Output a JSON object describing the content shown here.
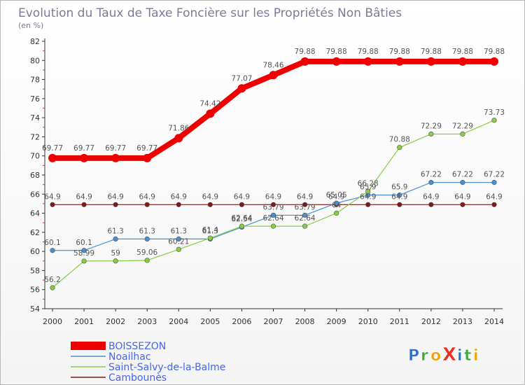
{
  "chart_data": {
    "type": "line",
    "title": "Evolution du Taux de Taxe Foncière sur les Propriétés Non Bâties",
    "subtitle": "(en %)",
    "xlabel": "",
    "ylabel": "",
    "categories": [
      "2000",
      "2001",
      "2002",
      "2003",
      "2004",
      "2005",
      "2006",
      "2007",
      "2008",
      "2009",
      "2010",
      "2011",
      "2012",
      "2013",
      "2014"
    ],
    "ylim": [
      54,
      82
    ],
    "yticks": [
      54,
      56,
      58,
      60,
      62,
      64,
      66,
      68,
      70,
      72,
      74,
      76,
      78,
      80,
      82
    ],
    "grid": false,
    "legend_position": "bottom-left",
    "series": [
      {
        "name": "BOISSEZON",
        "color": "#ee0000",
        "values": [
          69.77,
          69.77,
          69.77,
          69.77,
          71.86,
          74.42,
          77.07,
          78.46,
          79.88,
          79.88,
          79.88,
          79.88,
          79.88,
          79.88,
          79.88
        ],
        "labels": [
          "69.77",
          "69.77",
          "69.77",
          "69.77",
          "71.86",
          "74.42",
          "77.07",
          "78.46",
          "79.88",
          "79.88",
          "79.88",
          "79.88",
          "79.88",
          "79.88",
          "79.88"
        ]
      },
      {
        "name": "Noailhac",
        "color": "#4a90d0",
        "values": [
          60.1,
          60.1,
          61.3,
          61.3,
          61.3,
          61.3,
          62.54,
          63.79,
          63.79,
          65.05,
          65.9,
          65.9,
          67.22,
          67.22,
          67.22
        ],
        "labels": [
          "60.1",
          "60.1",
          "61.3",
          "61.3",
          "61.3",
          "61.3",
          "62.54",
          "63.79",
          "63.79",
          "65.05",
          "65.9",
          "65.9",
          "67.22",
          "67.22",
          "67.22"
        ]
      },
      {
        "name": "Saint-Salvy-de-la-Balme",
        "color": "#88cc44",
        "values": [
          56.2,
          58.99,
          59,
          59.06,
          60.21,
          61.4,
          62.64,
          62.64,
          62.64,
          64,
          66.28,
          70.88,
          72.29,
          72.29,
          73.73
        ],
        "labels": [
          "56.2",
          "58.99",
          "59",
          "59.06",
          "60.21",
          "61.4",
          "62.64",
          "62.64",
          "62.64",
          "64",
          "66.28",
          "70.88",
          "72.29",
          "72.29",
          "73.73"
        ]
      },
      {
        "name": "Cambounès",
        "color": "#7a1a1a",
        "values": [
          64.9,
          64.9,
          64.9,
          64.9,
          64.9,
          64.9,
          64.9,
          64.9,
          64.9,
          64.9,
          64.9,
          64.9,
          64.9,
          64.9,
          64.9
        ],
        "labels": [
          "64.9",
          "64.9",
          "64.9",
          "64.9",
          "64.9",
          "64.9",
          "64.9",
          "64.9",
          "64.9",
          "64.9",
          "64.9",
          "64.9",
          "64.9",
          "64.9",
          "64.9"
        ]
      }
    ]
  },
  "brand": {
    "logo_text": "ProXiti",
    "letters": [
      "P",
      "r",
      "o",
      "X",
      "i",
      "t",
      "i"
    ],
    "letter_colors": [
      "#2a6fd6",
      "#3aaa3a",
      "#f0a000",
      "#e83020",
      "#2a6fd6",
      "#3aaa3a",
      "#f0a000"
    ]
  }
}
